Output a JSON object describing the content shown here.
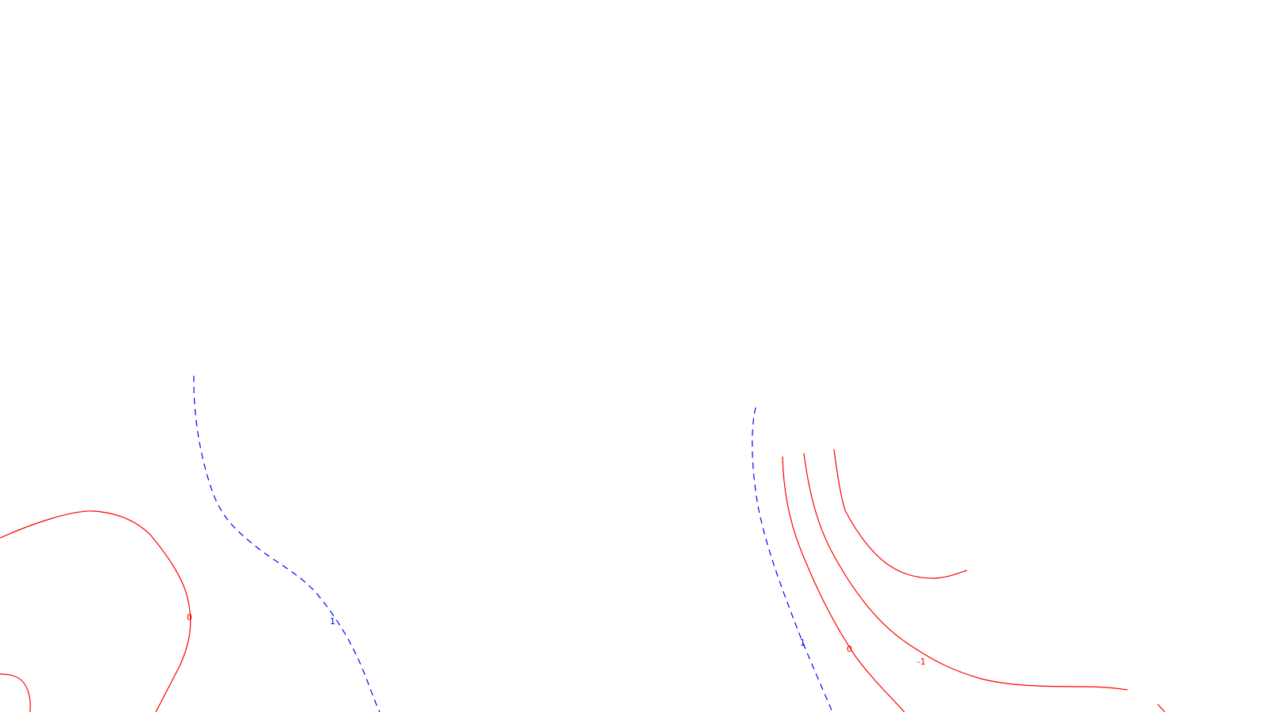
{
  "colors": {
    "positive": "#ff0000",
    "negative": "#0000ff",
    "background": "#ffffff"
  },
  "labels": {
    "left_zero": "0",
    "left_dashed": "1",
    "right_dashed": "1",
    "right_zero": "0",
    "right_minus_one": "-1"
  }
}
